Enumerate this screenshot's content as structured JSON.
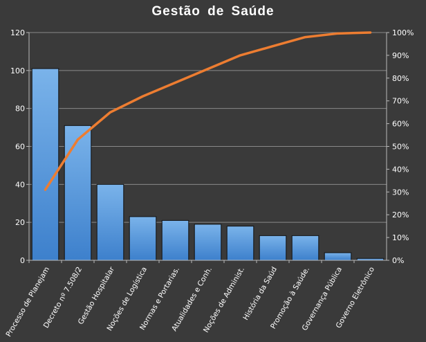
{
  "chart_data": {
    "type": "bar",
    "title": "Gestão  de  Saúde",
    "categories": [
      "Processo de Planejam",
      "Decreto nº 7.508/2",
      "Gestão Hospitalar",
      "Noções de Logística",
      "Normas e Portarias.",
      "Atualidades e Conh.",
      "Noções de Administ.",
      "História da Saúd",
      "Promoção à Saúde.",
      "Governança Pública",
      "Governo Eletrônico"
    ],
    "series": [
      {
        "type": "bar",
        "values": [
          101,
          71,
          40,
          23,
          21,
          19,
          18,
          13,
          13,
          4,
          1
        ],
        "color": "#4a8fd6"
      },
      {
        "type": "line",
        "axis": "right",
        "values": [
          31,
          53,
          65,
          72,
          78,
          84,
          90,
          94,
          98,
          99.6,
          100
        ],
        "color": "#ed7d31"
      }
    ],
    "y_left": {
      "min": 0,
      "max": 120,
      "ticks": [
        "0",
        "20",
        "40",
        "60",
        "80",
        "100",
        "120"
      ]
    },
    "y_right": {
      "min": 0,
      "max": 100,
      "ticks": [
        "0%",
        "10%",
        "20%",
        "30%",
        "40%",
        "50%",
        "60%",
        "70%",
        "80%",
        "90%",
        "100%"
      ]
    },
    "grid": true
  }
}
